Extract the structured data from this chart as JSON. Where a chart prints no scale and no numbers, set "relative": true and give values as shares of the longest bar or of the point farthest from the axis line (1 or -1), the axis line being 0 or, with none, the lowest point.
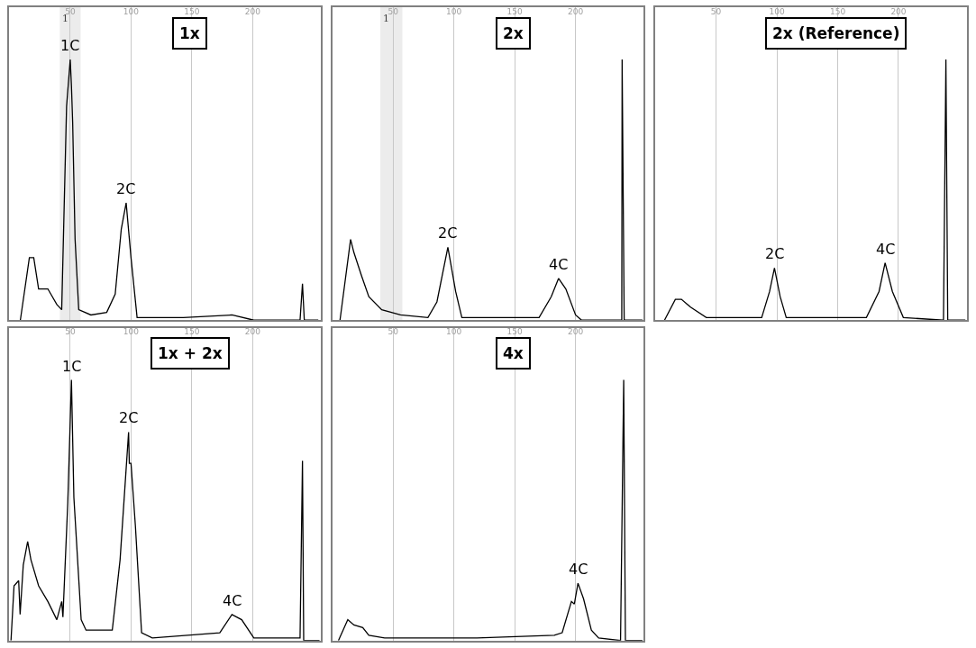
{
  "chart_data": [
    {
      "type": "line",
      "title": "1x",
      "relative": true,
      "color": "#000000",
      "xlim": [
        0,
        256
      ],
      "xticks": [
        50,
        100,
        150,
        200
      ],
      "grid": "x",
      "tick_labels": "x",
      "x": [
        9,
        16.4,
        20,
        24,
        31.6,
        39,
        43,
        47,
        50,
        51,
        52,
        54,
        57,
        67,
        80,
        87,
        92,
        96,
        100,
        105,
        143,
        183,
        201,
        239,
        241,
        242.5,
        254
      ],
      "values": [
        0,
        0.24,
        0.24,
        0.12,
        0.12,
        0.06,
        0.04,
        0.82,
        1,
        0.9,
        0.76,
        0.31,
        0.04,
        0.02,
        0.03,
        0.1,
        0.35,
        0.45,
        0.24,
        0.01,
        0.01,
        0.02,
        0,
        0,
        0.14,
        0,
        0
      ],
      "bands": [
        {
          "axis": "x",
          "from": 42,
          "to": 58,
          "label": "1",
          "color": "#808080"
        }
      ],
      "annotations": [
        {
          "text": "1C",
          "x": 50,
          "y": 1
        },
        {
          "text": "2C",
          "x": 96,
          "y": 0.45
        }
      ]
    },
    {
      "type": "line",
      "title": "2x",
      "relative": true,
      "color": "#000000",
      "xlim": [
        0,
        256
      ],
      "xticks": [
        50,
        100,
        150,
        200
      ],
      "grid": "x",
      "tick_labels": "x",
      "x": [
        6.3,
        15,
        17.7,
        24,
        30,
        40.6,
        56,
        78.6,
        86,
        95,
        101.4,
        106.5,
        170,
        180,
        186,
        192,
        200,
        205,
        238,
        238.3,
        240,
        255
      ],
      "values": [
        0,
        0.31,
        0.26,
        0.17,
        0.09,
        0.04,
        0.02,
        0.01,
        0.07,
        0.28,
        0.11,
        0.01,
        0.01,
        0.09,
        0.16,
        0.12,
        0.02,
        0,
        0,
        1,
        0,
        0
      ],
      "bands": [
        {
          "axis": "x",
          "from": 40,
          "to": 57,
          "label": "1",
          "color": "#808080"
        }
      ],
      "annotations": [
        {
          "text": "2C",
          "x": 95,
          "y": 0.28
        },
        {
          "text": "4C",
          "x": 186,
          "y": 0.16
        }
      ]
    },
    {
      "type": "line",
      "title": "2x (Reference)",
      "relative": true,
      "color": "#000000",
      "xlim": [
        0,
        256
      ],
      "xticks": [
        50,
        100,
        150,
        200
      ],
      "grid": "x",
      "tick_labels": "x",
      "x": [
        7.6,
        16.5,
        21.5,
        29,
        42,
        87.5,
        94,
        98,
        102.7,
        107.7,
        173.6,
        184,
        189,
        195,
        204,
        237,
        239,
        240.5,
        255
      ],
      "values": [
        0,
        0.08,
        0.08,
        0.05,
        0.01,
        0.01,
        0.11,
        0.2,
        0.09,
        0.01,
        0.01,
        0.11,
        0.22,
        0.11,
        0.01,
        0,
        1,
        0,
        0
      ],
      "annotations": [
        {
          "text": "2C",
          "x": 98,
          "y": 0.2
        },
        {
          "text": "4C",
          "x": 189,
          "y": 0.22
        }
      ]
    },
    {
      "type": "line",
      "title": "1x + 2x",
      "relative": true,
      "color": "#000000",
      "xlim": [
        0,
        256
      ],
      "xticks": [
        50,
        100,
        150,
        200
      ],
      "grid": "x",
      "tick_labels": "x",
      "x": [
        1.3,
        3.8,
        7.6,
        8.8,
        11.4,
        15,
        17.7,
        24,
        31.6,
        39,
        43,
        44,
        48,
        51,
        53,
        59,
        63,
        84.6,
        91,
        98,
        98.6,
        100,
        103.6,
        108.7,
        117.5,
        173,
        183,
        191,
        201,
        239,
        241,
        242,
        255
      ],
      "values": [
        0,
        0.21,
        0.23,
        0.1,
        0.29,
        0.38,
        0.31,
        0.21,
        0.15,
        0.08,
        0.15,
        0.09,
        0.53,
        1,
        0.55,
        0.08,
        0.04,
        0.04,
        0.31,
        0.8,
        0.68,
        0.68,
        0.44,
        0.03,
        0.01,
        0.03,
        0.1,
        0.08,
        0.01,
        0.01,
        0.69,
        0,
        0
      ],
      "annotations": [
        {
          "text": "1C",
          "x": 51,
          "y": 1
        },
        {
          "text": "2C",
          "x": 98,
          "y": 0.8
        },
        {
          "text": "4C",
          "x": 183,
          "y": 0.1
        }
      ]
    },
    {
      "type": "line",
      "title": "4x",
      "relative": true,
      "color": "#000000",
      "xlim": [
        0,
        256
      ],
      "xticks": [
        50,
        100,
        150,
        200
      ],
      "grid": "x",
      "tick_labels": "x",
      "x": [
        5,
        12.7,
        17.7,
        25,
        30,
        43,
        119,
        182.5,
        189,
        196.6,
        199,
        202,
        206.6,
        213,
        219,
        237,
        239.6,
        241,
        255
      ],
      "values": [
        0,
        0.08,
        0.06,
        0.05,
        0.02,
        0.01,
        0.01,
        0.02,
        0.03,
        0.15,
        0.14,
        0.22,
        0.16,
        0.04,
        0.01,
        0,
        1,
        0,
        0
      ],
      "annotations": [
        {
          "text": "4C",
          "x": 202,
          "y": 0.22
        }
      ]
    }
  ]
}
